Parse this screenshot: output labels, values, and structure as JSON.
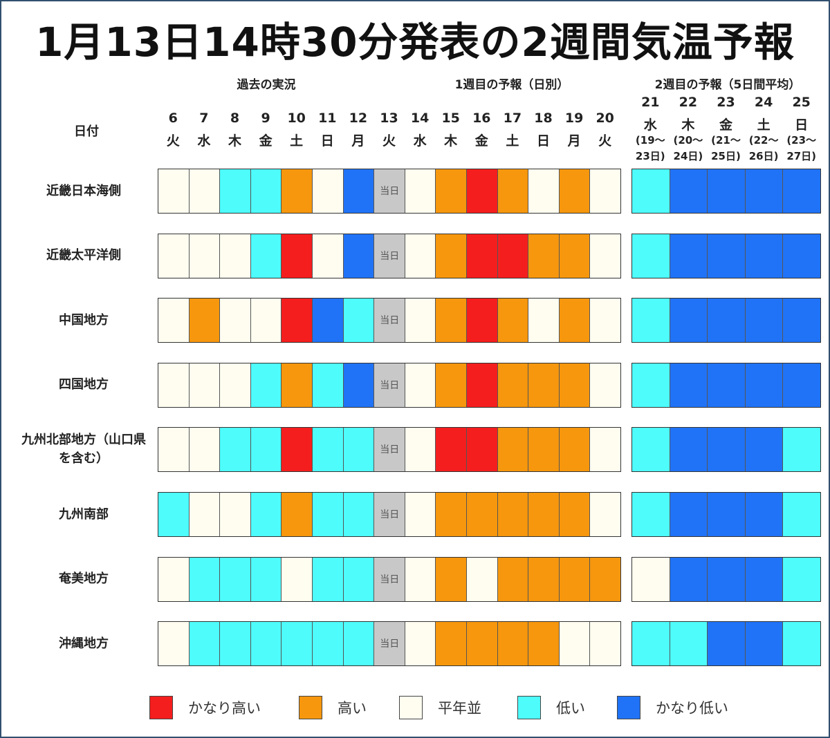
{
  "title": "1月13日14時30分発表の2週間気温予報",
  "section_headers": {
    "past": "過去の実況",
    "week1": "1週目の予報（日別）",
    "week2": "2週目の予報（5日間平均）"
  },
  "date_label": "日付",
  "today_label": "当日",
  "colors": {
    "vhigh": "#f51e1e",
    "high": "#f6970d",
    "normal": "#fefdf0",
    "low": "#4efcfc",
    "vlow": "#2073f6",
    "today": "#c8c8c8"
  },
  "chart_data": {
    "type": "heatmap",
    "title": "1月13日14時30分発表の2週間気温予報",
    "days": [
      {
        "day": "6",
        "dow": "火"
      },
      {
        "day": "7",
        "dow": "水"
      },
      {
        "day": "8",
        "dow": "木"
      },
      {
        "day": "9",
        "dow": "金"
      },
      {
        "day": "10",
        "dow": "土"
      },
      {
        "day": "11",
        "dow": "日"
      },
      {
        "day": "12",
        "dow": "月"
      },
      {
        "day": "13",
        "dow": "火"
      },
      {
        "day": "14",
        "dow": "水"
      },
      {
        "day": "15",
        "dow": "木"
      },
      {
        "day": "16",
        "dow": "金"
      },
      {
        "day": "17",
        "dow": "土"
      },
      {
        "day": "18",
        "dow": "日"
      },
      {
        "day": "19",
        "dow": "月"
      },
      {
        "day": "20",
        "dow": "火"
      }
    ],
    "week2": [
      {
        "day": "21",
        "dow": "水",
        "range1": "(19～",
        "range2": "23日)"
      },
      {
        "day": "22",
        "dow": "木",
        "range1": "(20～",
        "range2": "24日)"
      },
      {
        "day": "23",
        "dow": "金",
        "range1": "(21～",
        "range2": "25日)"
      },
      {
        "day": "24",
        "dow": "土",
        "range1": "(22～",
        "range2": "26日)"
      },
      {
        "day": "25",
        "dow": "日",
        "range1": "(23～",
        "range2": "27日)"
      }
    ],
    "legend": [
      {
        "key": "vhigh",
        "label": "かなり高い"
      },
      {
        "key": "high",
        "label": "高い"
      },
      {
        "key": "normal",
        "label": "平年並"
      },
      {
        "key": "low",
        "label": "低い"
      },
      {
        "key": "vlow",
        "label": "かなり低い"
      }
    ],
    "rows": [
      {
        "region": [
          "近畿日本海側"
        ],
        "daily": [
          "normal",
          "normal",
          "low",
          "low",
          "high",
          "normal",
          "vlow",
          "today",
          "normal",
          "high",
          "vhigh",
          "high",
          "normal",
          "high",
          "normal"
        ],
        "week2": [
          "low",
          "vlow",
          "vlow",
          "vlow",
          "vlow"
        ]
      },
      {
        "region": [
          "近畿太平洋側"
        ],
        "daily": [
          "normal",
          "normal",
          "normal",
          "low",
          "vhigh",
          "normal",
          "vlow",
          "today",
          "normal",
          "high",
          "vhigh",
          "vhigh",
          "high",
          "high",
          "normal"
        ],
        "week2": [
          "low",
          "vlow",
          "vlow",
          "vlow",
          "vlow"
        ]
      },
      {
        "region": [
          "中国地方"
        ],
        "daily": [
          "normal",
          "high",
          "normal",
          "normal",
          "vhigh",
          "vlow",
          "low",
          "today",
          "normal",
          "high",
          "vhigh",
          "high",
          "normal",
          "high",
          "normal"
        ],
        "week2": [
          "low",
          "vlow",
          "vlow",
          "vlow",
          "vlow"
        ]
      },
      {
        "region": [
          "四国地方"
        ],
        "daily": [
          "normal",
          "normal",
          "normal",
          "low",
          "high",
          "low",
          "vlow",
          "today",
          "normal",
          "high",
          "vhigh",
          "high",
          "high",
          "high",
          "normal"
        ],
        "week2": [
          "low",
          "vlow",
          "vlow",
          "vlow",
          "vlow"
        ]
      },
      {
        "region": [
          "九州北部地方（山口県",
          "を含む）"
        ],
        "daily": [
          "normal",
          "normal",
          "low",
          "low",
          "vhigh",
          "low",
          "low",
          "today",
          "normal",
          "vhigh",
          "vhigh",
          "high",
          "high",
          "high",
          "normal"
        ],
        "week2": [
          "low",
          "vlow",
          "vlow",
          "vlow",
          "low"
        ]
      },
      {
        "region": [
          "九州南部"
        ],
        "daily": [
          "low",
          "normal",
          "normal",
          "low",
          "high",
          "low",
          "low",
          "today",
          "normal",
          "high",
          "high",
          "high",
          "high",
          "high",
          "normal"
        ],
        "week2": [
          "low",
          "vlow",
          "vlow",
          "vlow",
          "low"
        ]
      },
      {
        "region": [
          "奄美地方"
        ],
        "daily": [
          "normal",
          "low",
          "low",
          "low",
          "normal",
          "low",
          "low",
          "today",
          "normal",
          "high",
          "normal",
          "high",
          "high",
          "high",
          "high"
        ],
        "week2": [
          "normal",
          "vlow",
          "vlow",
          "vlow",
          "low"
        ]
      },
      {
        "region": [
          "沖縄地方"
        ],
        "daily": [
          "normal",
          "low",
          "low",
          "low",
          "low",
          "low",
          "low",
          "today",
          "normal",
          "high",
          "high",
          "high",
          "high",
          "normal",
          "normal"
        ],
        "week2": [
          "low",
          "low",
          "vlow",
          "vlow",
          "low"
        ]
      }
    ]
  }
}
